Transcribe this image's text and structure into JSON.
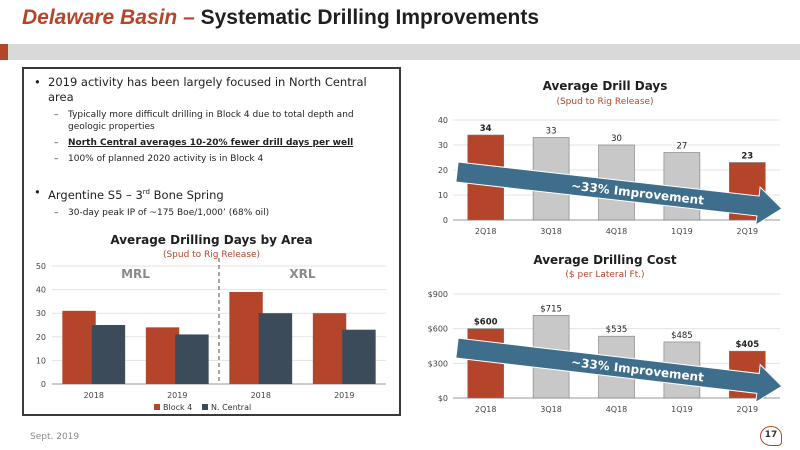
{
  "header": {
    "title_highlight": "Delaware Basin –",
    "title_rest": "Systematic Drilling Improvements",
    "accent_color": "#b5452a"
  },
  "bullets": {
    "b1": "2019 activity has been largely focused in North Central area",
    "b1_sub1": "Typically more difficult drilling in Block 4 due to total depth and geologic properties",
    "b1_sub2": "North Central averages 10-20% fewer drill days per well",
    "b1_sub3": "100% of planned 2020 activity is in Block 4",
    "b2_pre": "Argentine S5 – 3",
    "b2_sup": "rd",
    "b2_post": " Bone Spring",
    "b2_sub1": "30-day peak IP of ~175 Boe/1,000’ (68% oil)"
  },
  "footer": {
    "date": "Sept. 2019",
    "page": "17"
  },
  "chart_data": [
    {
      "type": "bar",
      "title": "Average Drill Days",
      "subtitle": "(Spud to Rig Release)",
      "categories": [
        "2Q18",
        "3Q18",
        "4Q18",
        "1Q19",
        "2Q19"
      ],
      "values": [
        34,
        33,
        30,
        27,
        23
      ],
      "value_labels": [
        "34",
        "33",
        "30",
        "27",
        "23"
      ],
      "highlight": [
        true,
        false,
        false,
        false,
        true
      ],
      "ylim": [
        0,
        40
      ],
      "yticks": [
        0,
        10,
        20,
        30,
        40
      ],
      "ytick_labels": [
        "0",
        "10",
        "20",
        "30",
        "40"
      ],
      "annotation": "~33% Improvement",
      "colors": {
        "highlight": "#b5452a",
        "normal": "#c8c8c8",
        "arrow": "#3f6e8c"
      }
    },
    {
      "type": "bar",
      "title": "Average Drilling Cost",
      "subtitle": "($ per Lateral Ft.)",
      "categories": [
        "2Q18",
        "3Q18",
        "4Q18",
        "1Q19",
        "2Q19"
      ],
      "values": [
        600,
        715,
        535,
        485,
        405
      ],
      "value_labels": [
        "$600",
        "$715",
        "$535",
        "$485",
        "$405"
      ],
      "highlight": [
        true,
        false,
        false,
        false,
        true
      ],
      "ylim": [
        0,
        900
      ],
      "yticks": [
        0,
        300,
        600,
        900
      ],
      "ytick_labels": [
        "$0",
        "$300",
        "$600",
        "$900"
      ],
      "annotation": "~33% Improvement",
      "colors": {
        "highlight": "#b5452a",
        "normal": "#c8c8c8",
        "arrow": "#3f6e8c"
      }
    },
    {
      "type": "bar",
      "title": "Average Drilling Days by Area",
      "subtitle": "(Spud to Rig Release)",
      "categories": [
        "2018",
        "2019",
        "2018",
        "2019"
      ],
      "groups": [
        "MRL",
        "XRL"
      ],
      "series": [
        {
          "name": "Block 4",
          "values": [
            31,
            24,
            39,
            30
          ],
          "color": "#b5452a"
        },
        {
          "name": "N. Central",
          "values": [
            25,
            21,
            30,
            23
          ],
          "color": "#3b4b5a"
        }
      ],
      "ylim": [
        0,
        50
      ],
      "yticks": [
        0,
        10,
        20,
        30,
        40,
        50
      ],
      "ytick_labels": [
        "0",
        "10",
        "20",
        "30",
        "40",
        "50"
      ],
      "legend": "bottom"
    }
  ]
}
